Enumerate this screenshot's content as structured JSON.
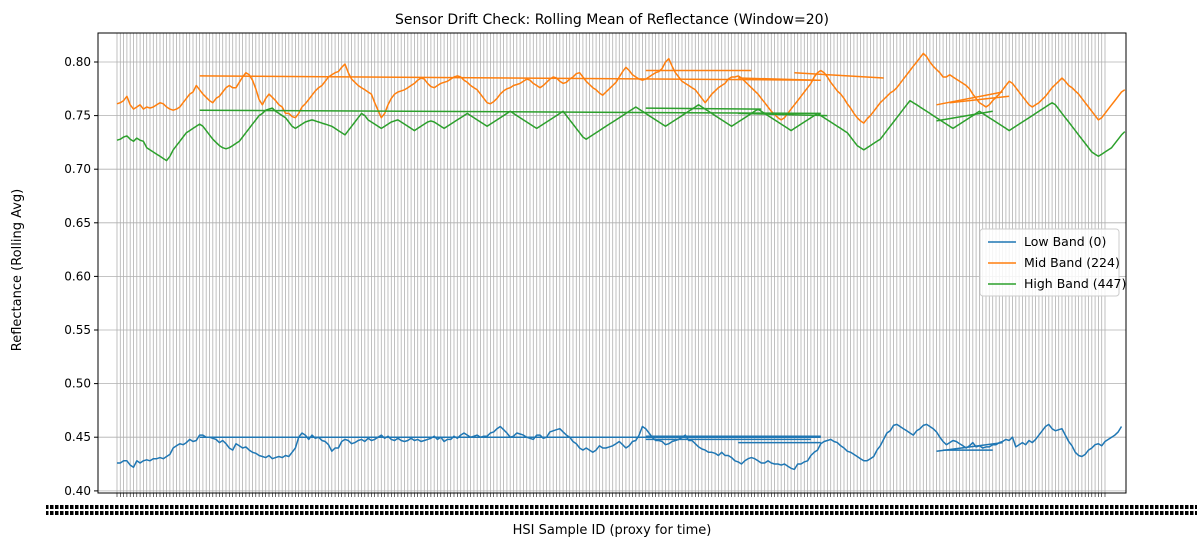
{
  "chart_data": {
    "type": "line",
    "title": "Sensor Drift Check: Rolling Mean of Reflectance (Window=20)",
    "xlabel": "HSI Sample ID (proxy for time)",
    "ylabel": "Reflectance (Rolling Avg)",
    "ylim": [
      0.398,
      0.827
    ],
    "yticks": [
      0.4,
      0.45,
      0.5,
      0.55,
      0.6,
      0.65,
      0.7,
      0.75,
      0.8
    ],
    "ytick_labels": [
      "0.40",
      "0.45",
      "0.50",
      "0.55",
      "0.60",
      "0.65",
      "0.70",
      "0.75",
      "0.80"
    ],
    "x_count": 300,
    "x_tick_note": "Category sample IDs (hundreds of tick labels overlapping, illegible)",
    "grid": true,
    "legend": {
      "placement": "center-right"
    },
    "series": [
      {
        "name": "Low Band (0)",
        "color": "#1f77b4",
        "values": [
          0.426,
          0.426,
          0.428,
          0.428,
          0.424,
          0.422,
          0.428,
          0.426,
          0.428,
          0.429,
          0.428,
          0.43,
          0.43,
          0.431,
          0.43,
          0.432,
          0.434,
          0.44,
          0.442,
          0.444,
          0.443,
          0.445,
          0.448,
          0.446,
          0.447,
          0.452,
          0.452,
          0.45,
          0.45,
          0.449,
          0.448,
          0.445,
          0.447,
          0.444,
          0.44,
          0.438,
          0.444,
          0.442,
          0.44,
          0.441,
          0.438,
          0.436,
          0.435,
          0.433,
          0.432,
          0.431,
          0.433,
          0.43,
          0.431,
          0.432,
          0.431,
          0.433,
          0.432,
          0.436,
          0.44,
          0.45,
          0.454,
          0.452,
          0.448,
          0.452,
          0.449,
          0.45,
          0.447,
          0.446,
          0.443,
          0.437,
          0.44,
          0.44,
          0.446,
          0.448,
          0.447,
          0.444,
          0.445,
          0.447,
          0.448,
          0.446,
          0.449,
          0.447,
          0.448,
          0.45,
          0.452,
          0.449,
          0.451,
          0.448,
          0.447,
          0.449,
          0.447,
          0.446,
          0.447,
          0.449,
          0.447,
          0.448,
          0.446,
          0.447,
          0.448,
          0.449,
          0.451,
          0.448,
          0.45,
          0.446,
          0.448,
          0.448,
          0.451,
          0.449,
          0.452,
          0.454,
          0.452,
          0.45,
          0.451,
          0.452,
          0.45,
          0.451,
          0.451,
          0.454,
          0.455,
          0.458,
          0.46,
          0.457,
          0.454,
          0.45,
          0.451,
          0.454,
          0.453,
          0.452,
          0.45,
          0.449,
          0.448,
          0.452,
          0.452,
          0.449,
          0.45,
          0.455,
          0.456,
          0.457,
          0.458,
          0.455,
          0.452,
          0.45,
          0.446,
          0.444,
          0.44,
          0.438,
          0.44,
          0.438,
          0.436,
          0.438,
          0.442,
          0.44,
          0.44,
          0.441,
          0.442,
          0.444,
          0.446,
          0.443,
          0.44,
          0.442,
          0.446,
          0.447,
          0.452,
          0.46,
          0.458,
          0.454,
          0.45,
          0.447,
          0.447,
          0.446,
          0.443,
          0.444,
          0.446,
          0.447,
          0.448,
          0.45,
          0.452,
          0.447,
          0.447,
          0.444,
          0.441,
          0.439,
          0.438,
          0.436,
          0.436,
          0.435,
          0.433,
          0.436,
          0.433,
          0.433,
          0.431,
          0.428,
          0.427,
          0.425,
          0.428,
          0.43,
          0.431,
          0.43,
          0.428,
          0.426,
          0.426,
          0.428,
          0.426,
          0.425,
          0.425,
          0.424,
          0.425,
          0.423,
          0.421,
          0.42,
          0.425,
          0.425,
          0.427,
          0.428,
          0.433,
          0.436,
          0.438,
          0.444,
          0.446,
          0.447,
          0.448,
          0.446,
          0.445,
          0.442,
          0.44,
          0.437,
          0.436,
          0.434,
          0.432,
          0.43,
          0.428,
          0.428,
          0.43,
          0.432,
          0.438,
          0.442,
          0.448,
          0.454,
          0.456,
          0.461,
          0.462,
          0.46,
          0.458,
          0.456,
          0.454,
          0.452,
          0.456,
          0.458,
          0.461,
          0.462,
          0.46,
          0.458,
          0.455,
          0.45,
          0.446,
          0.443,
          0.445,
          0.447,
          0.446,
          0.444,
          0.442,
          0.44,
          0.442,
          0.445,
          0.441,
          0.442,
          0.44,
          0.441,
          0.441,
          0.443,
          0.443,
          0.445,
          0.446,
          0.448,
          0.447,
          0.45,
          0.441,
          0.443,
          0.445,
          0.443,
          0.447,
          0.445,
          0.448,
          0.452,
          0.456,
          0.46,
          0.462,
          0.458,
          0.456,
          0.457,
          0.458,
          0.452,
          0.446,
          0.442,
          0.436,
          0.433,
          0.432,
          0.434,
          0.438,
          0.44,
          0.443,
          0.444,
          0.442,
          0.446,
          0.448,
          0.45,
          0.452,
          0.455,
          0.46
        ]
      },
      {
        "name": "Mid Band (224)",
        "color": "#ff7f0e",
        "values": [
          0.761,
          0.762,
          0.764,
          0.768,
          0.76,
          0.756,
          0.758,
          0.76,
          0.756,
          0.758,
          0.757,
          0.758,
          0.76,
          0.762,
          0.761,
          0.758,
          0.756,
          0.755,
          0.756,
          0.758,
          0.762,
          0.766,
          0.77,
          0.772,
          0.778,
          0.774,
          0.77,
          0.767,
          0.764,
          0.762,
          0.766,
          0.768,
          0.772,
          0.776,
          0.778,
          0.776,
          0.776,
          0.781,
          0.786,
          0.79,
          0.788,
          0.783,
          0.775,
          0.765,
          0.76,
          0.766,
          0.77,
          0.767,
          0.764,
          0.76,
          0.758,
          0.752,
          0.752,
          0.749,
          0.748,
          0.752,
          0.758,
          0.761,
          0.765,
          0.769,
          0.773,
          0.776,
          0.778,
          0.782,
          0.786,
          0.788,
          0.79,
          0.791,
          0.795,
          0.798,
          0.79,
          0.784,
          0.781,
          0.778,
          0.776,
          0.774,
          0.772,
          0.77,
          0.762,
          0.755,
          0.748,
          0.752,
          0.76,
          0.766,
          0.77,
          0.772,
          0.773,
          0.774,
          0.776,
          0.778,
          0.78,
          0.783,
          0.785,
          0.784,
          0.78,
          0.777,
          0.776,
          0.778,
          0.78,
          0.781,
          0.782,
          0.784,
          0.786,
          0.787,
          0.786,
          0.783,
          0.781,
          0.778,
          0.776,
          0.774,
          0.77,
          0.766,
          0.762,
          0.761,
          0.763,
          0.766,
          0.77,
          0.773,
          0.775,
          0.776,
          0.778,
          0.779,
          0.78,
          0.782,
          0.784,
          0.783,
          0.78,
          0.778,
          0.776,
          0.778,
          0.781,
          0.784,
          0.786,
          0.785,
          0.782,
          0.78,
          0.781,
          0.784,
          0.786,
          0.789,
          0.79,
          0.786,
          0.782,
          0.779,
          0.776,
          0.774,
          0.771,
          0.769,
          0.772,
          0.775,
          0.778,
          0.781,
          0.786,
          0.791,
          0.795,
          0.792,
          0.788,
          0.786,
          0.784,
          0.783,
          0.784,
          0.786,
          0.788,
          0.79,
          0.791,
          0.794,
          0.8,
          0.803,
          0.796,
          0.79,
          0.786,
          0.782,
          0.78,
          0.778,
          0.776,
          0.774,
          0.77,
          0.766,
          0.762,
          0.766,
          0.77,
          0.773,
          0.776,
          0.778,
          0.78,
          0.784,
          0.786,
          0.786,
          0.787,
          0.785,
          0.782,
          0.779,
          0.776,
          0.773,
          0.77,
          0.766,
          0.762,
          0.758,
          0.754,
          0.751,
          0.748,
          0.746,
          0.748,
          0.752,
          0.756,
          0.76,
          0.764,
          0.768,
          0.772,
          0.776,
          0.78,
          0.786,
          0.79,
          0.792,
          0.79,
          0.786,
          0.781,
          0.777,
          0.773,
          0.77,
          0.766,
          0.761,
          0.757,
          0.752,
          0.748,
          0.745,
          0.743,
          0.747,
          0.75,
          0.754,
          0.758,
          0.762,
          0.765,
          0.768,
          0.771,
          0.773,
          0.776,
          0.78,
          0.784,
          0.788,
          0.792,
          0.796,
          0.8,
          0.804,
          0.808,
          0.805,
          0.8,
          0.796,
          0.793,
          0.79,
          0.786,
          0.786,
          0.788,
          0.786,
          0.784,
          0.782,
          0.78,
          0.778,
          0.775,
          0.77,
          0.766,
          0.762,
          0.76,
          0.758,
          0.76,
          0.764,
          0.767,
          0.77,
          0.774,
          0.778,
          0.782,
          0.78,
          0.776,
          0.772,
          0.768,
          0.764,
          0.76,
          0.758,
          0.76,
          0.762,
          0.765,
          0.768,
          0.772,
          0.776,
          0.779,
          0.782,
          0.785,
          0.782,
          0.778,
          0.776,
          0.773,
          0.77,
          0.766,
          0.762,
          0.758,
          0.754,
          0.75,
          0.746,
          0.748,
          0.752,
          0.756,
          0.76,
          0.764,
          0.768,
          0.772,
          0.774
        ]
      },
      {
        "name": "High Band (447)",
        "color": "#2ca02c",
        "values": [
          0.727,
          0.728,
          0.73,
          0.731,
          0.728,
          0.726,
          0.729,
          0.727,
          0.726,
          0.72,
          0.718,
          0.716,
          0.714,
          0.712,
          0.71,
          0.708,
          0.712,
          0.718,
          0.722,
          0.726,
          0.73,
          0.734,
          0.736,
          0.738,
          0.74,
          0.742,
          0.74,
          0.736,
          0.732,
          0.728,
          0.725,
          0.722,
          0.72,
          0.719,
          0.72,
          0.722,
          0.724,
          0.726,
          0.73,
          0.734,
          0.738,
          0.742,
          0.746,
          0.75,
          0.752,
          0.755,
          0.756,
          0.757,
          0.754,
          0.752,
          0.75,
          0.748,
          0.744,
          0.74,
          0.738,
          0.74,
          0.742,
          0.744,
          0.745,
          0.746,
          0.745,
          0.744,
          0.743,
          0.742,
          0.741,
          0.74,
          0.738,
          0.736,
          0.734,
          0.732,
          0.736,
          0.74,
          0.744,
          0.748,
          0.752,
          0.75,
          0.746,
          0.744,
          0.742,
          0.74,
          0.738,
          0.74,
          0.742,
          0.744,
          0.745,
          0.746,
          0.744,
          0.742,
          0.74,
          0.738,
          0.736,
          0.738,
          0.74,
          0.742,
          0.744,
          0.745,
          0.744,
          0.742,
          0.74,
          0.738,
          0.74,
          0.742,
          0.744,
          0.746,
          0.748,
          0.75,
          0.752,
          0.75,
          0.748,
          0.746,
          0.744,
          0.742,
          0.74,
          0.742,
          0.744,
          0.746,
          0.748,
          0.75,
          0.752,
          0.754,
          0.752,
          0.75,
          0.748,
          0.746,
          0.744,
          0.742,
          0.74,
          0.738,
          0.74,
          0.742,
          0.744,
          0.746,
          0.748,
          0.75,
          0.752,
          0.754,
          0.75,
          0.746,
          0.742,
          0.738,
          0.734,
          0.73,
          0.728,
          0.73,
          0.732,
          0.734,
          0.736,
          0.738,
          0.74,
          0.742,
          0.744,
          0.746,
          0.748,
          0.75,
          0.752,
          0.754,
          0.756,
          0.758,
          0.756,
          0.754,
          0.752,
          0.75,
          0.748,
          0.746,
          0.744,
          0.742,
          0.74,
          0.742,
          0.744,
          0.746,
          0.748,
          0.75,
          0.752,
          0.754,
          0.756,
          0.758,
          0.76,
          0.758,
          0.756,
          0.754,
          0.752,
          0.75,
          0.748,
          0.746,
          0.744,
          0.742,
          0.74,
          0.742,
          0.744,
          0.746,
          0.748,
          0.75,
          0.752,
          0.754,
          0.756,
          0.754,
          0.752,
          0.75,
          0.748,
          0.746,
          0.744,
          0.742,
          0.74,
          0.738,
          0.736,
          0.738,
          0.74,
          0.742,
          0.744,
          0.746,
          0.748,
          0.75,
          0.752,
          0.75,
          0.748,
          0.746,
          0.744,
          0.742,
          0.74,
          0.738,
          0.736,
          0.734,
          0.73,
          0.726,
          0.722,
          0.72,
          0.718,
          0.72,
          0.722,
          0.724,
          0.726,
          0.728,
          0.732,
          0.736,
          0.74,
          0.744,
          0.748,
          0.752,
          0.756,
          0.76,
          0.764,
          0.762,
          0.76,
          0.758,
          0.756,
          0.754,
          0.752,
          0.75,
          0.748,
          0.746,
          0.744,
          0.742,
          0.74,
          0.738,
          0.74,
          0.742,
          0.744,
          0.746,
          0.748,
          0.75,
          0.752,
          0.754,
          0.752,
          0.75,
          0.748,
          0.746,
          0.744,
          0.742,
          0.74,
          0.738,
          0.736,
          0.738,
          0.74,
          0.742,
          0.744,
          0.746,
          0.748,
          0.75,
          0.752,
          0.754,
          0.756,
          0.758,
          0.76,
          0.762,
          0.76,
          0.756,
          0.752,
          0.748,
          0.744,
          0.74,
          0.736,
          0.732,
          0.728,
          0.724,
          0.72,
          0.716,
          0.714,
          0.712,
          0.714,
          0.716,
          0.718,
          0.72,
          0.724,
          0.728,
          0.732,
          0.735
        ]
      }
    ],
    "segments": [
      {
        "series": 1,
        "x": [
          25,
          213
        ],
        "y": [
          0.787,
          0.783
        ]
      },
      {
        "series": 1,
        "x": [
          160,
          192
        ],
        "y": [
          0.792,
          0.792
        ]
      },
      {
        "series": 1,
        "x": [
          205,
          232
        ],
        "y": [
          0.79,
          0.785
        ]
      },
      {
        "series": 1,
        "x": [
          188,
          212
        ],
        "y": [
          0.785,
          0.783
        ]
      },
      {
        "series": 1,
        "x": [
          248,
          268
        ],
        "y": [
          0.76,
          0.772
        ]
      },
      {
        "series": 1,
        "x": [
          252,
          270
        ],
        "y": [
          0.762,
          0.768
        ]
      },
      {
        "series": 2,
        "x": [
          25,
          213
        ],
        "y": [
          0.755,
          0.752
        ]
      },
      {
        "series": 2,
        "x": [
          160,
          195
        ],
        "y": [
          0.757,
          0.756
        ]
      },
      {
        "series": 2,
        "x": [
          188,
          215
        ],
        "y": [
          0.752,
          0.75
        ]
      },
      {
        "series": 2,
        "x": [
          248,
          265
        ],
        "y": [
          0.745,
          0.754
        ]
      },
      {
        "series": 0,
        "x": [
          25,
          213
        ],
        "y": [
          0.45,
          0.45
        ]
      },
      {
        "series": 0,
        "x": [
          160,
          213
        ],
        "y": [
          0.451,
          0.451
        ]
      },
      {
        "series": 0,
        "x": [
          160,
          210
        ],
        "y": [
          0.448,
          0.448
        ]
      },
      {
        "series": 0,
        "x": [
          188,
          213
        ],
        "y": [
          0.445,
          0.445
        ]
      },
      {
        "series": 0,
        "x": [
          248,
          268
        ],
        "y": [
          0.437,
          0.445
        ]
      },
      {
        "series": 0,
        "x": [
          250,
          265
        ],
        "y": [
          0.438,
          0.438
        ]
      }
    ]
  }
}
